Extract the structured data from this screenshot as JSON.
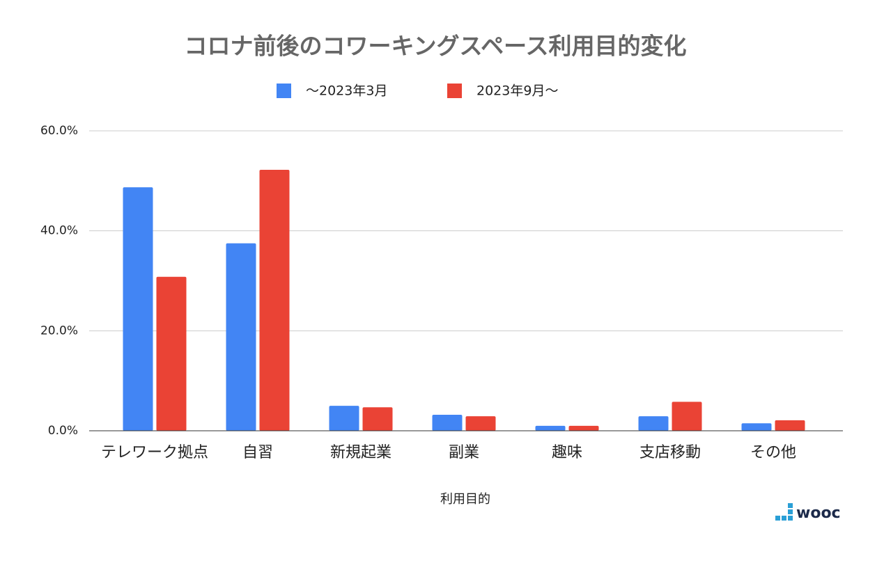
{
  "chart_data": {
    "type": "bar",
    "title": "コロナ前後のコワーキングスペース利用目的変化",
    "x_label": "利用目的",
    "categories": [
      "テレワーク拠点",
      "自習",
      "新規起業",
      "副業",
      "趣味",
      "支店移動",
      "その他"
    ],
    "series": [
      {
        "name": "～2023年3月",
        "color": "#4285f4",
        "values": [
          48.7,
          37.5,
          5.0,
          3.2,
          1.0,
          2.9,
          1.5
        ]
      },
      {
        "name": "2023年9月～",
        "color": "#ea4335",
        "values": [
          30.8,
          52.2,
          4.7,
          2.9,
          1.0,
          5.8,
          2.1
        ]
      }
    ],
    "ylim": [
      0,
      60
    ],
    "yticks": [
      {
        "value": 0,
        "label": "0.0%"
      },
      {
        "value": 20,
        "label": "20.0%"
      },
      {
        "value": 40,
        "label": "40.0%"
      },
      {
        "value": 60,
        "label": "60.0%"
      }
    ],
    "grid": true,
    "legend": "top"
  },
  "logo": "wooc"
}
